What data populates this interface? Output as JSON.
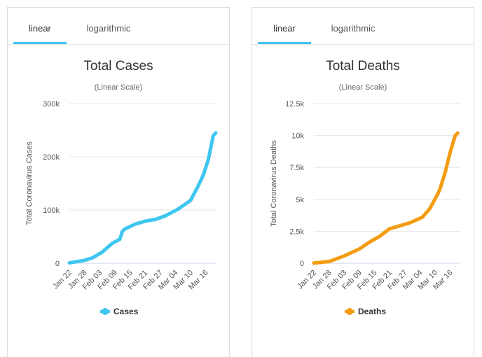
{
  "tabs": {
    "linear": "linear",
    "log": "logarithmic"
  },
  "chart_data": [
    {
      "type": "line",
      "title": "Total Cases",
      "subtitle": "(Linear Scale)",
      "ylabel": "Total Coronavirus Cases",
      "xlabel": "",
      "ylim": [
        0,
        300000
      ],
      "yticks": [
        0,
        100000,
        200000,
        300000
      ],
      "ytick_labels": [
        "0",
        "100k",
        "200k",
        "300k"
      ],
      "x_ticks": [
        "Jan 22",
        "Jan 28",
        "Feb 03",
        "Feb 09",
        "Feb 15",
        "Feb 21",
        "Feb 27",
        "Mar 04",
        "Mar 10",
        "Mar 16"
      ],
      "num_days": 59,
      "color": "#3ec6ef",
      "legend": "Cases",
      "series": [
        {
          "name": "Cases",
          "points": [
            [
              0,
              580
            ],
            [
              6,
              5500
            ],
            [
              9,
              9800
            ],
            [
              13,
              20600
            ],
            [
              17,
              37500
            ],
            [
              20,
              45000
            ],
            [
              21,
              60000
            ],
            [
              22,
              64400
            ],
            [
              26,
              73300
            ],
            [
              30,
              78900
            ],
            [
              34,
              82300
            ],
            [
              38,
              89000
            ],
            [
              43,
              101500
            ],
            [
              48,
              118000
            ],
            [
              51,
              145000
            ],
            [
              53,
              165000
            ],
            [
              55,
              194000
            ],
            [
              57,
              240000
            ],
            [
              58,
              245000
            ]
          ]
        }
      ]
    },
    {
      "type": "line",
      "title": "Total Deaths",
      "subtitle": "(Linear Scale)",
      "ylabel": "Total Coronavirus Deaths",
      "xlabel": "",
      "ylim": [
        0,
        12500
      ],
      "yticks": [
        0,
        2500,
        5000,
        7500,
        10000,
        12500
      ],
      "ytick_labels": [
        "0",
        "2.5k",
        "5k",
        "7.5k",
        "10k",
        "12.5k"
      ],
      "x_ticks": [
        "Jan 22",
        "Jan 28",
        "Feb 03",
        "Feb 09",
        "Feb 15",
        "Feb 21",
        "Feb 27",
        "Mar 04",
        "Mar 10",
        "Mar 16"
      ],
      "num_days": 59,
      "color": "#f39c12",
      "legend": "Deaths",
      "series": [
        {
          "name": "Deaths",
          "points": [
            [
              0,
              17
            ],
            [
              6,
              132
            ],
            [
              12,
              565
            ],
            [
              18,
              1115
            ],
            [
              22,
              1650
            ],
            [
              26,
              2100
            ],
            [
              30,
              2700
            ],
            [
              33,
              2870
            ],
            [
              38,
              3160
            ],
            [
              43,
              3600
            ],
            [
              46,
              4300
            ],
            [
              49,
              5400
            ],
            [
              50,
              5840
            ],
            [
              52,
              7100
            ],
            [
              54,
              8700
            ],
            [
              56,
              10000
            ],
            [
              57,
              10200
            ]
          ]
        }
      ]
    }
  ]
}
